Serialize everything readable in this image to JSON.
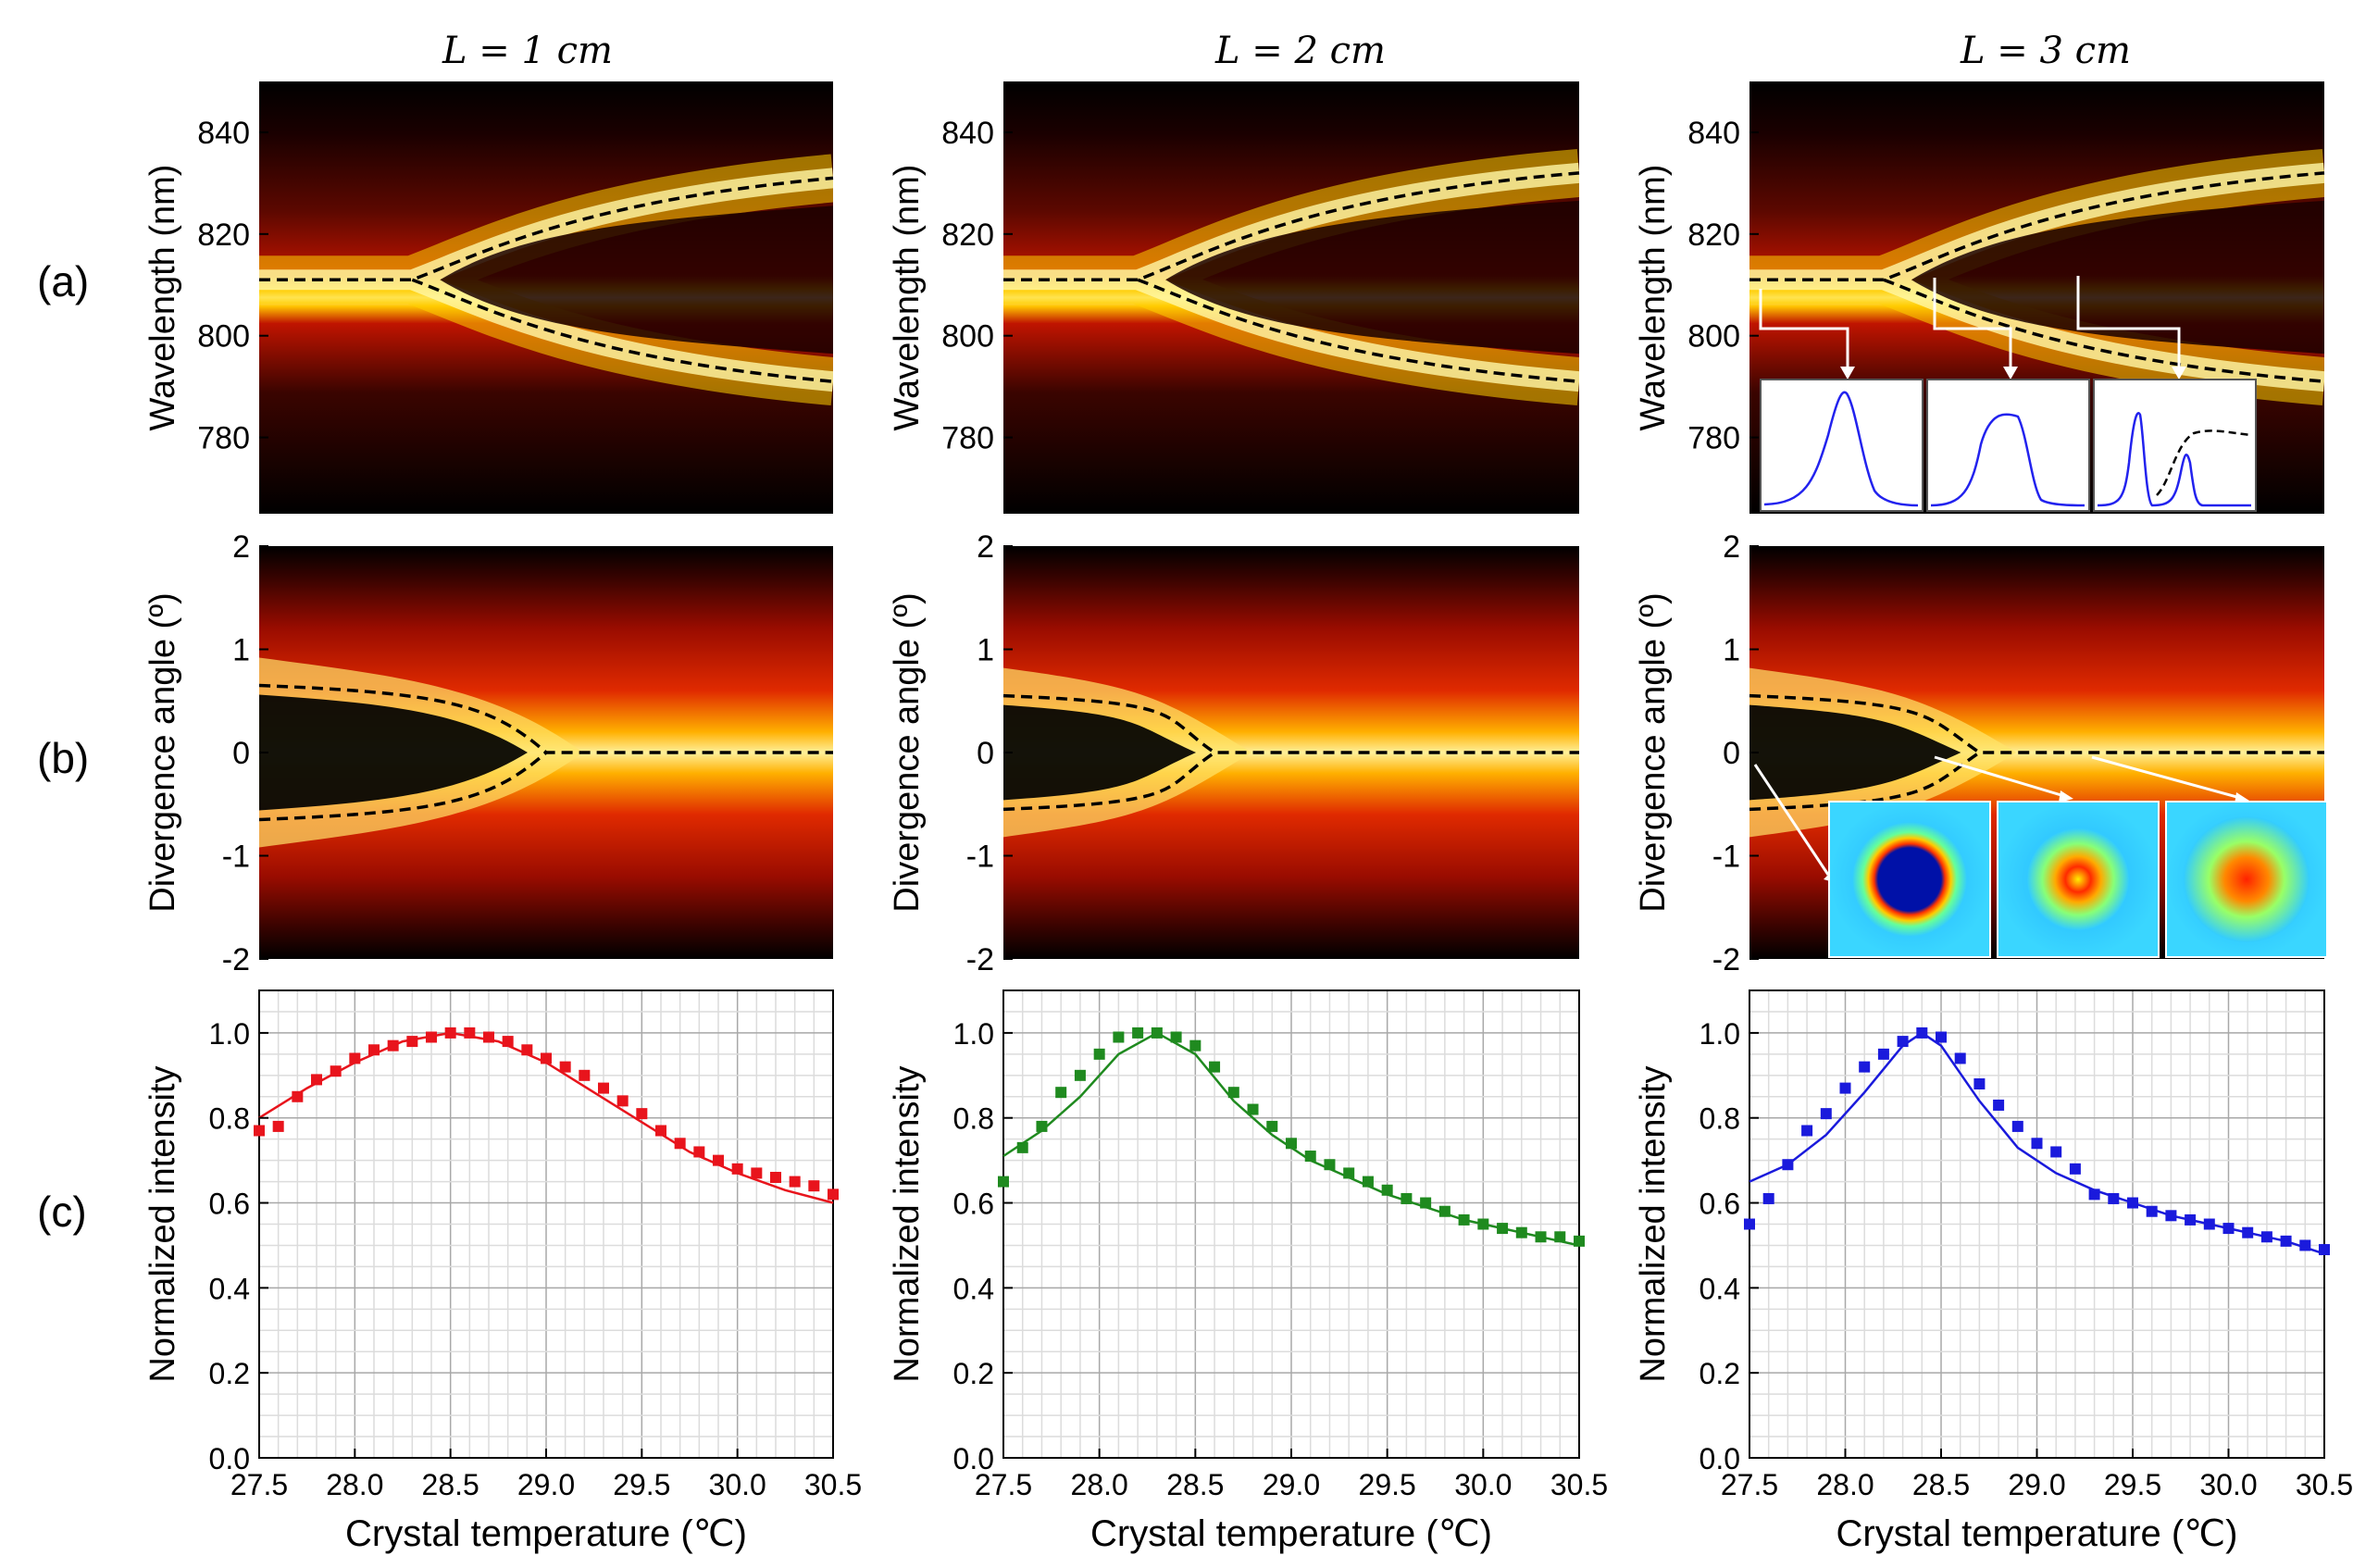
{
  "column_titles": [
    "L = 1 cm",
    "L = 2 cm",
    "L = 3 cm"
  ],
  "row_labels": [
    "(a)",
    "(b)",
    "(c)"
  ],
  "colors": {
    "red": "#e8141c",
    "green": "#1f8a1f",
    "blue": "#1a1adc",
    "heat_dark": "#000000",
    "heat_mid": "#d41a00",
    "heat_hot": "#fff9b0"
  },
  "chart_data": [
    {
      "type": "heatmap",
      "row": "a",
      "ylabel": "Wavelength (nm)",
      "yticks": [
        780,
        800,
        820,
        840
      ],
      "ylim": [
        765,
        850
      ],
      "xlim": [
        27.5,
        30.5
      ],
      "panels": [
        {
          "column": "L = 1 cm",
          "degenerate_nm": 811,
          "split_at_C": 28.3,
          "end_upper_nm": 831,
          "end_lower_nm": 791
        },
        {
          "column": "L = 2 cm",
          "degenerate_nm": 811,
          "split_at_C": 28.2,
          "end_upper_nm": 832,
          "end_lower_nm": 791
        },
        {
          "column": "L = 3 cm",
          "degenerate_nm": 811,
          "split_at_C": 28.2,
          "end_upper_nm": 832,
          "end_lower_nm": 791
        }
      ]
    },
    {
      "type": "heatmap",
      "row": "b",
      "ylabel": "Divergence angle (º)",
      "yticks": [
        -2,
        -1,
        0,
        1,
        2
      ],
      "ylim": [
        -2,
        2
      ],
      "xlim": [
        27.5,
        30.5
      ],
      "panels": [
        {
          "column": "L = 1 cm",
          "ring_start_deg": 0.65,
          "merge_at_C": 29.0
        },
        {
          "column": "L = 2 cm",
          "ring_start_deg": 0.55,
          "merge_at_C": 28.6
        },
        {
          "column": "L = 3 cm",
          "ring_start_deg": 0.55,
          "merge_at_C": 28.7
        }
      ]
    },
    {
      "type": "scatter",
      "row": "c",
      "ylabel": "Normalized intensity",
      "xlabel": "Crystal temperature (℃)",
      "xlim": [
        27.5,
        30.5
      ],
      "ylim": [
        0.0,
        1.1
      ],
      "xticks": [
        "27.5",
        "28.0",
        "28.5",
        "29.0",
        "29.5",
        "30.0",
        "30.5"
      ],
      "yticks": [
        "0.0",
        "0.2",
        "0.4",
        "0.6",
        "0.8",
        "1.0"
      ],
      "panels": [
        {
          "column": "L = 1 cm",
          "color": "#e8141c",
          "x": [
            27.5,
            27.6,
            27.7,
            27.8,
            27.9,
            28.0,
            28.1,
            28.2,
            28.3,
            28.4,
            28.5,
            28.6,
            28.7,
            28.8,
            28.9,
            29.0,
            29.1,
            29.2,
            29.3,
            29.4,
            29.5,
            29.6,
            29.7,
            29.8,
            29.9,
            30.0,
            30.1,
            30.2,
            30.3,
            30.4,
            30.5
          ],
          "y": [
            0.77,
            0.78,
            0.85,
            0.89,
            0.91,
            0.94,
            0.96,
            0.97,
            0.98,
            0.99,
            1.0,
            1.0,
            0.99,
            0.98,
            0.96,
            0.94,
            0.92,
            0.9,
            0.87,
            0.84,
            0.81,
            0.77,
            0.74,
            0.72,
            0.7,
            0.68,
            0.67,
            0.66,
            0.65,
            0.64,
            0.62
          ],
          "fit_x": [
            27.5,
            27.75,
            28.0,
            28.25,
            28.5,
            28.75,
            29.0,
            29.25,
            29.5,
            29.75,
            30.0,
            30.25,
            30.5
          ],
          "fit_y": [
            0.8,
            0.87,
            0.93,
            0.98,
            1.0,
            0.98,
            0.93,
            0.86,
            0.79,
            0.72,
            0.67,
            0.63,
            0.6
          ]
        },
        {
          "column": "L = 2 cm",
          "color": "#1f8a1f",
          "x": [
            27.5,
            27.6,
            27.7,
            27.8,
            27.9,
            28.0,
            28.1,
            28.2,
            28.3,
            28.4,
            28.5,
            28.6,
            28.7,
            28.8,
            28.9,
            29.0,
            29.1,
            29.2,
            29.3,
            29.4,
            29.5,
            29.6,
            29.7,
            29.8,
            29.9,
            30.0,
            30.1,
            30.2,
            30.3,
            30.4,
            30.5
          ],
          "y": [
            0.65,
            0.73,
            0.78,
            0.86,
            0.9,
            0.95,
            0.99,
            1.0,
            1.0,
            0.99,
            0.97,
            0.92,
            0.86,
            0.82,
            0.78,
            0.74,
            0.71,
            0.69,
            0.67,
            0.65,
            0.63,
            0.61,
            0.6,
            0.58,
            0.56,
            0.55,
            0.54,
            0.53,
            0.52,
            0.52,
            0.51
          ],
          "fit_x": [
            27.5,
            27.7,
            27.9,
            28.1,
            28.3,
            28.5,
            28.7,
            28.9,
            29.1,
            29.3,
            29.5,
            29.7,
            29.9,
            30.1,
            30.3,
            30.5
          ],
          "fit_y": [
            0.71,
            0.77,
            0.85,
            0.95,
            1.0,
            0.95,
            0.84,
            0.76,
            0.7,
            0.66,
            0.62,
            0.59,
            0.56,
            0.54,
            0.52,
            0.5
          ]
        },
        {
          "column": "L = 3 cm",
          "color": "#1a1adc",
          "x": [
            27.5,
            27.6,
            27.7,
            27.8,
            27.9,
            28.0,
            28.1,
            28.2,
            28.3,
            28.4,
            28.5,
            28.6,
            28.7,
            28.8,
            28.9,
            29.0,
            29.1,
            29.2,
            29.3,
            29.4,
            29.5,
            29.6,
            29.7,
            29.8,
            29.9,
            30.0,
            30.1,
            30.2,
            30.3,
            30.4,
            30.5
          ],
          "y": [
            0.55,
            0.61,
            0.69,
            0.77,
            0.81,
            0.87,
            0.92,
            0.95,
            0.98,
            1.0,
            0.99,
            0.94,
            0.88,
            0.83,
            0.78,
            0.74,
            0.72,
            0.68,
            0.62,
            0.61,
            0.6,
            0.58,
            0.57,
            0.56,
            0.55,
            0.54,
            0.53,
            0.52,
            0.51,
            0.5,
            0.49
          ],
          "fit_x": [
            27.5,
            27.7,
            27.9,
            28.1,
            28.3,
            28.4,
            28.5,
            28.7,
            28.9,
            29.1,
            29.3,
            29.5,
            29.7,
            29.9,
            30.1,
            30.3,
            30.5
          ],
          "fit_y": [
            0.65,
            0.69,
            0.76,
            0.86,
            0.97,
            1.0,
            0.97,
            0.84,
            0.73,
            0.67,
            0.63,
            0.6,
            0.57,
            0.55,
            0.53,
            0.51,
            0.48
          ]
        }
      ]
    }
  ]
}
